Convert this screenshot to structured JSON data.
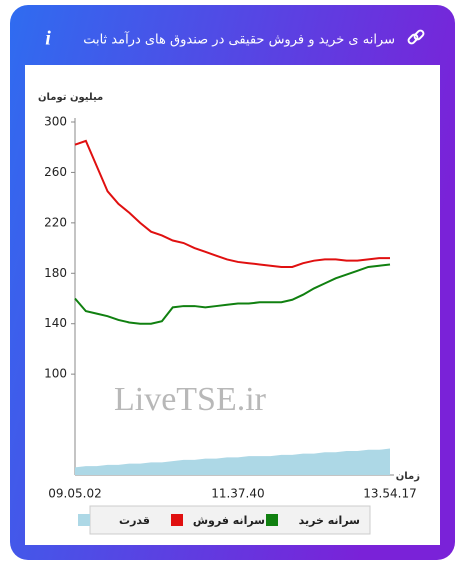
{
  "header": {
    "title": "سرانه ی خرید و فروش حقیقی در صندوق های درآمد ثابت",
    "info_icon": "i"
  },
  "chart_data": {
    "type": "line",
    "y_label": "میلیون تومان",
    "x_label": "زمان",
    "watermark": "LiveTSE.ir",
    "categories": [
      "09.05.02",
      null,
      null,
      null,
      null,
      null,
      null,
      null,
      null,
      null,
      null,
      null,
      null,
      null,
      null,
      "11.37.40",
      null,
      null,
      null,
      null,
      null,
      null,
      null,
      null,
      null,
      null,
      null,
      null,
      null,
      "13.54.17"
    ],
    "ylim": [
      20,
      300
    ],
    "yticks": [
      100,
      140,
      180,
      220,
      260,
      300
    ],
    "grid": false,
    "series": [
      {
        "name": "قدرت",
        "color": "#add8e6",
        "kind": "area",
        "values": [
          26,
          27,
          27,
          28,
          28,
          29,
          29,
          30,
          30,
          31,
          32,
          32,
          33,
          33,
          34,
          34,
          35,
          35,
          35,
          36,
          36,
          37,
          37,
          38,
          38,
          39,
          39,
          40,
          40,
          41
        ]
      },
      {
        "name": "سرانه فروش",
        "color": "#e01010",
        "kind": "line",
        "values": [
          282,
          285,
          265,
          245,
          235,
          228,
          220,
          213,
          210,
          206,
          204,
          200,
          197,
          194,
          191,
          189,
          188,
          187,
          186,
          185,
          185,
          188,
          190,
          191,
          191,
          190,
          190,
          191,
          192,
          192
        ]
      },
      {
        "name": "سرانه خرید",
        "color": "#108010",
        "kind": "line",
        "values": [
          160,
          150,
          148,
          146,
          143,
          141,
          140,
          140,
          142,
          153,
          154,
          154,
          153,
          154,
          155,
          156,
          156,
          157,
          157,
          157,
          159,
          163,
          168,
          172,
          176,
          179,
          182,
          185,
          186,
          187
        ]
      }
    ]
  }
}
